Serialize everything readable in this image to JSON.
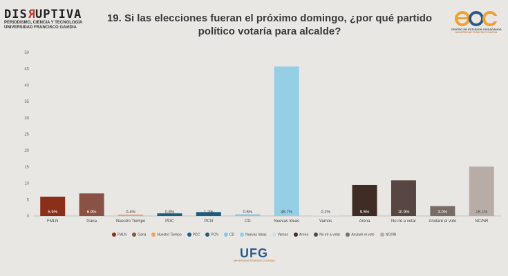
{
  "header": {
    "logo_left": {
      "title_pre": "DIS",
      "title_r": "R",
      "title_post": "UPTIVA",
      "subtitle1": "PERIODISMO, CIENCIA Y TECNOLOGÍA",
      "subtitle2": "UNIVERSIDAD FRANCISCO GAVIDIA"
    },
    "title_line1": "19. Si las elecciones fueran el próximo domingo, ¿por qué partido",
    "title_line2": "político votaría para alcalde?",
    "logo_right": {
      "caption1": "CENTRO DE ESTUDIOS CIUDADANOS",
      "caption2": "UNIVERSIDAD FRANCISCO GAVIDIA"
    }
  },
  "footer": {
    "logo_text": "UFG",
    "logo_sub": "UNIVERSIDAD FRANCISCO GAVIDIA"
  },
  "chart_data": {
    "type": "bar",
    "title": "19. Si las elecciones fueran el próximo domingo, ¿por qué partido político votaría para alcalde?",
    "categories": [
      "FMLN",
      "Gana",
      "Nuestro Tiempo",
      "PDC",
      "PCN",
      "CD",
      "Nuevas Ideas",
      "Vamos",
      "Arena",
      "No iré a votar",
      "Anularé el voto",
      "NC/NR"
    ],
    "values": [
      5.9,
      6.9,
      0.4,
      0.8,
      1.2,
      0.5,
      45.7,
      0.2,
      9.5,
      10.9,
      3.0,
      15.1
    ],
    "value_labels": [
      "5.9%",
      "6.9%",
      "0.4%",
      "0.8%",
      "1.2%",
      "0.5%",
      "45.7%",
      "0.2%",
      "9.5%",
      "10.9%",
      "3.0%",
      "15.1%"
    ],
    "colors": [
      "#8b2f1a",
      "#8a5245",
      "#f0a060",
      "#1c5d80",
      "#1c5d80",
      "#8ec6de",
      "#94cfe6",
      "#c9e1ec",
      "#3e2c25",
      "#574641",
      "#7b6b66",
      "#b7ada6"
    ],
    "value_label_colors": [
      "#ffffff",
      "#ffffff",
      "#444444",
      "#444444",
      "#444444",
      "#444444",
      "#444444",
      "#444444",
      "#ffffff",
      "#ffffff",
      "#ffffff",
      "#444444"
    ],
    "ylim": [
      0,
      50
    ],
    "yticks": [
      0,
      5,
      10,
      15,
      20,
      25,
      30,
      35,
      40,
      45,
      50
    ],
    "grid": false,
    "legend": {
      "position": "bottom",
      "entries": [
        "FMLN",
        "Gana",
        "Nuestro Tiempo",
        "PDC",
        "PCN",
        "CD",
        "Nuevas Ideas",
        "Vamos",
        "Arena",
        "No iré a votar",
        "Anularé el voto",
        "NC/NR"
      ]
    }
  }
}
